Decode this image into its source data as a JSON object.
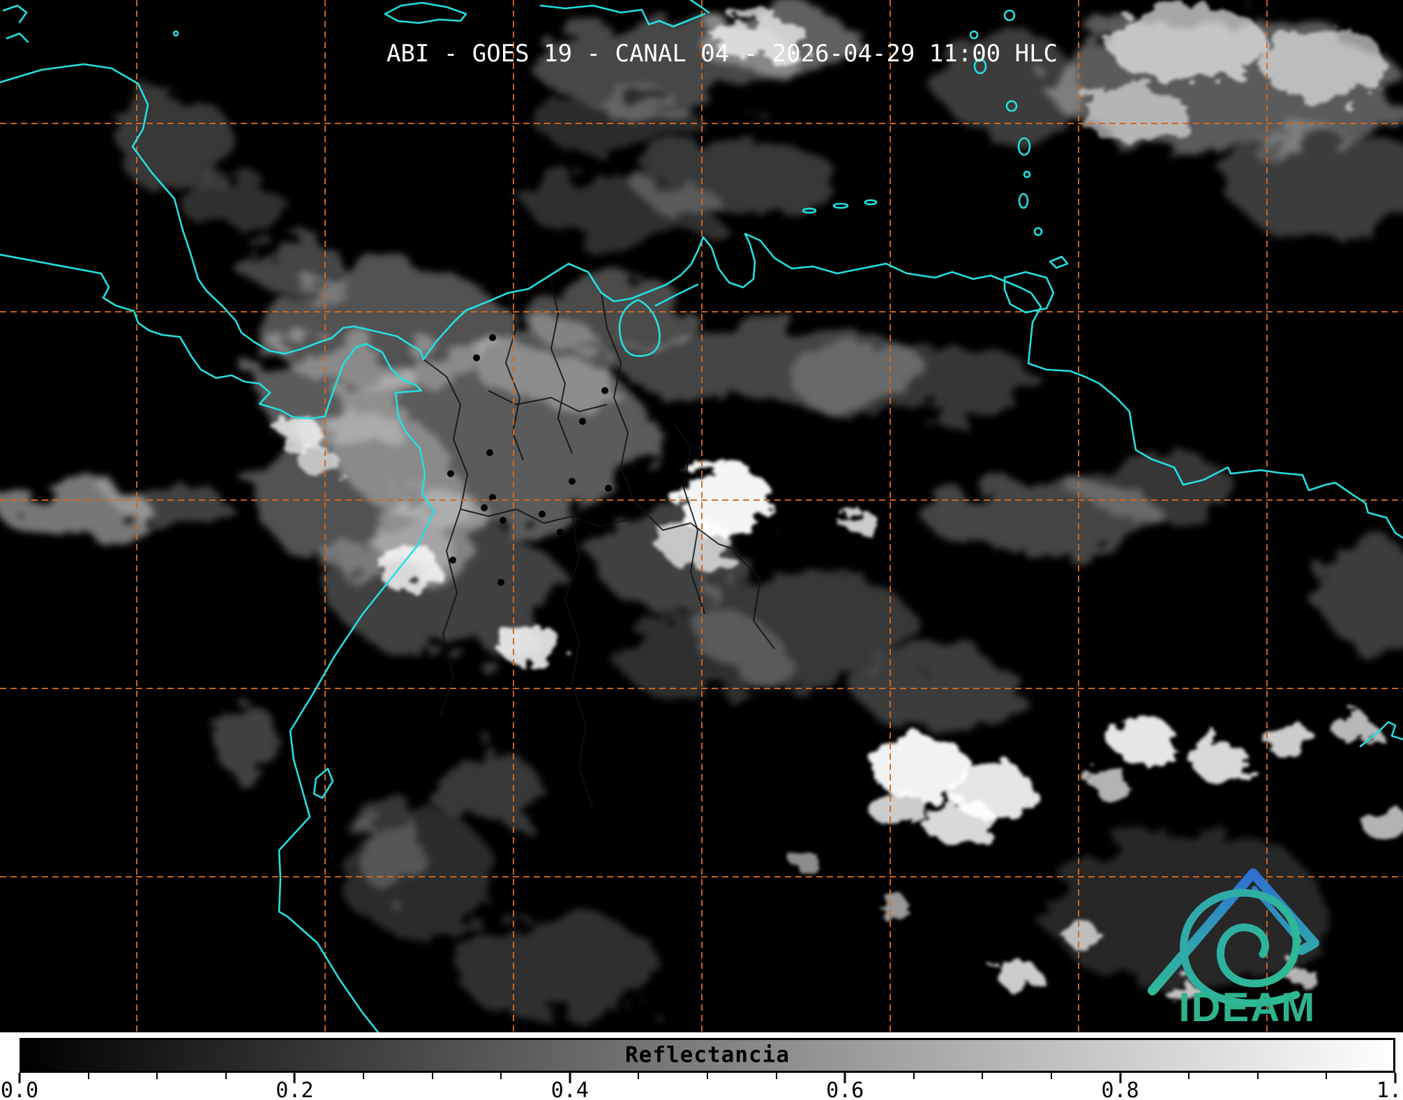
{
  "title": "ABI - GOES 19 - CANAL 04 - 2026-04-29 11:00 HLC",
  "colorbar": {
    "label": "Reflectancia",
    "min": 0.0,
    "max": 1.0,
    "tick_values": [
      0,
      0.2,
      0.4,
      0.6,
      0.8,
      1.0
    ],
    "tick_labels": [
      "0.0",
      "0.2",
      "0.4",
      "0.6",
      "0.8",
      "1.0"
    ],
    "minor_tick_values": [
      0.05,
      0.1,
      0.15,
      0.25,
      0.3,
      0.35,
      0.45,
      0.5,
      0.55,
      0.65,
      0.7,
      0.75,
      0.85,
      0.9,
      0.95
    ],
    "colormap": "grayscale-black-to-white"
  },
  "logo": {
    "text": "IDEAM",
    "mountain_color_top": "#2f6fd0",
    "mountain_color_bottom": "#2fb89a",
    "text_color": "#2db48d"
  },
  "map": {
    "background_color": "#000000",
    "coastline_color": "#24dfe0",
    "graticule_color": "#d2691e",
    "admin_border_color": "#111111",
    "station_dot_color": "#000000"
  }
}
